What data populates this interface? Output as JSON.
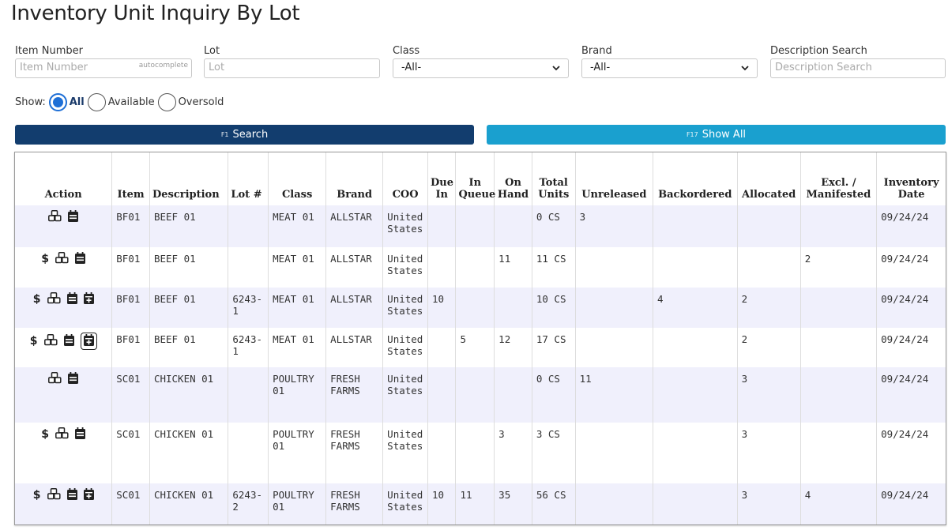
{
  "page": {
    "title": "Inventory Unit Inquiry By Lot"
  },
  "filters": {
    "item_number": {
      "label": "Item Number",
      "placeholder": "Item Number",
      "tag": "autocomplete"
    },
    "lot": {
      "label": "Lot",
      "placeholder": "Lot"
    },
    "class": {
      "label": "Class",
      "value": "-All-"
    },
    "brand": {
      "label": "Brand",
      "value": "-All-"
    },
    "description": {
      "label": "Description Search",
      "placeholder": "Description Search"
    }
  },
  "show": {
    "label": "Show:",
    "options": [
      "All",
      "Available",
      "Oversold"
    ],
    "selected": "All"
  },
  "buttons": {
    "search": {
      "key": "F1",
      "label": "Search"
    },
    "show_all": {
      "key": "F17",
      "label": "Show All"
    }
  },
  "colors": {
    "primary": "#123d6e",
    "secondary": "#1aa0cf",
    "row_alt": "#f0f0fc",
    "radio": "#1e6fd6"
  },
  "table": {
    "headers": [
      "Action",
      "Item",
      "Description",
      "Lot #",
      "Class",
      "Brand",
      "COO",
      "Due In",
      "In Queue",
      "On Hand",
      "Total Units",
      "Unreleased",
      "Backordered",
      "Allocated",
      "Excl. / Manifested",
      "Inventory Date"
    ],
    "rows": [
      {
        "actions": [
          "pallets-icon",
          "calendar-icon"
        ],
        "cells": [
          "BF01",
          "BEEF 01",
          "",
          "MEAT 01",
          "ALLSTAR",
          "United States",
          "",
          "",
          "",
          "0 CS",
          "3",
          "",
          "",
          "",
          "09/24/24"
        ]
      },
      {
        "actions": [
          "dollar-icon",
          "pallets-icon",
          "calendar-icon"
        ],
        "cells": [
          "BF01",
          "BEEF 01",
          "",
          "MEAT 01",
          "ALLSTAR",
          "United States",
          "",
          "",
          "11",
          "11 CS",
          "",
          "",
          "",
          "2",
          "09/24/24"
        ]
      },
      {
        "actions": [
          "dollar-icon",
          "pallets-icon",
          "calendar-icon",
          "calendar-plus-icon"
        ],
        "cells": [
          "BF01",
          "BEEF 01",
          "6243-1",
          "MEAT 01",
          "ALLSTAR",
          "United States",
          "10",
          "",
          "",
          "10 CS",
          "",
          "4",
          "2",
          "",
          "09/24/24"
        ]
      },
      {
        "actions": [
          "dollar-icon",
          "pallets-icon",
          "calendar-icon",
          "calendar-plus-icon"
        ],
        "cells": [
          "BF01",
          "BEEF 01",
          "6243-1",
          "MEAT 01",
          "ALLSTAR",
          "United States",
          "",
          "5",
          "12",
          "17 CS",
          "",
          "",
          "2",
          "",
          "09/24/24"
        ]
      },
      {
        "actions": [
          "pallets-icon",
          "calendar-icon"
        ],
        "cells": [
          "SC01",
          "CHICKEN 01",
          "",
          "POULTRY 01",
          "FRESH FARMS",
          "United States",
          "",
          "",
          "",
          "0 CS",
          "11",
          "",
          "3",
          "",
          "09/24/24"
        ]
      },
      {
        "actions": [
          "dollar-icon",
          "pallets-icon",
          "calendar-icon"
        ],
        "cells": [
          "SC01",
          "CHICKEN 01",
          "",
          "POULTRY 01",
          "FRESH FARMS",
          "United States",
          "",
          "",
          "3",
          "3 CS",
          "",
          "",
          "3",
          "",
          "09/24/24"
        ]
      },
      {
        "actions": [
          "dollar-icon",
          "pallets-icon",
          "calendar-icon",
          "calendar-plus-icon"
        ],
        "cells": [
          "SC01",
          "CHICKEN 01",
          "6243-2",
          "POULTRY 01",
          "FRESH FARMS",
          "United States",
          "10",
          "11",
          "35",
          "56 CS",
          "",
          "",
          "3",
          "4",
          "09/24/24"
        ]
      }
    ]
  }
}
